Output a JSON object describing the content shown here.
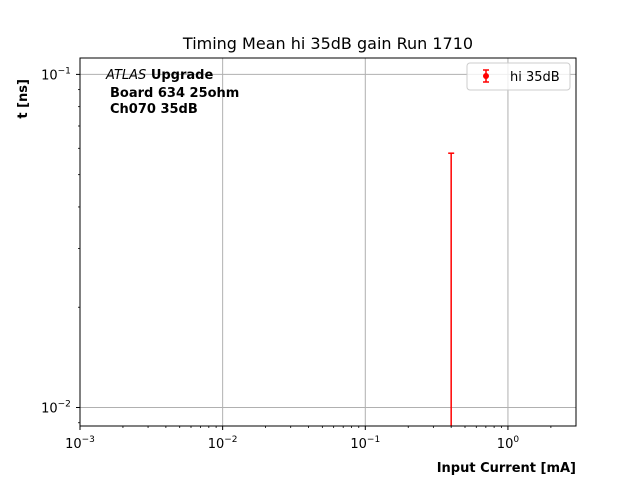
{
  "chart_data": {
    "type": "scatter",
    "title": "Timing Mean hi 35dB gain Run 1710",
    "xlabel": "Input Current [mA]",
    "ylabel": "t [ns]",
    "xscale": "log",
    "yscale": "log",
    "xlim": [
      0.001,
      3.0
    ],
    "ylim": [
      0.0088,
      0.112
    ],
    "grid": true,
    "legend_position": "top-right",
    "x_ticks": [
      {
        "value": 0.001,
        "base": "10",
        "exp": "−3"
      },
      {
        "value": 0.01,
        "base": "10",
        "exp": "−2"
      },
      {
        "value": 0.1,
        "base": "10",
        "exp": "−1"
      },
      {
        "value": 1.0,
        "base": "10",
        "exp": "0"
      }
    ],
    "y_ticks": [
      {
        "value": 0.01,
        "base": "10",
        "exp": "−2"
      },
      {
        "value": 0.1,
        "base": "10",
        "exp": "−1"
      }
    ],
    "annotation": {
      "line1_italic": "ATLAS",
      "line1_bold": "Upgrade",
      "line2": "Board 634 25ohm",
      "line3": "Ch070 35dB"
    },
    "series": [
      {
        "name": "hi 35dB",
        "color": "#ff0000",
        "marker": "circle",
        "points": [
          {
            "x": 0.4,
            "y": 0.0,
            "yerr_low": 0.0,
            "yerr_high": 0.058
          }
        ]
      }
    ]
  }
}
